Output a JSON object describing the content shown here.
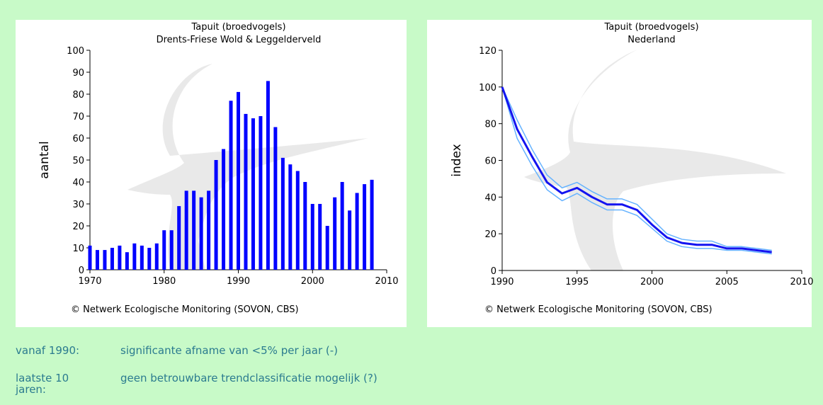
{
  "chart_data": [
    {
      "type": "bar",
      "title": "Tapuit (broedvogels)",
      "subtitle": "Drents-Friese Wold & Leggelderveld",
      "y_label": "aantal",
      "annotation": "© Netwerk Ecologische Monitoring (SOVON, CBS)",
      "x": [
        1970,
        1971,
        1972,
        1973,
        1974,
        1975,
        1976,
        1977,
        1978,
        1979,
        1980,
        1981,
        1982,
        1983,
        1984,
        1985,
        1986,
        1987,
        1988,
        1989,
        1990,
        1991,
        1992,
        1993,
        1994,
        1995,
        1996,
        1997,
        1998,
        1999,
        2000,
        2001,
        2002,
        2003,
        2004,
        2005,
        2006,
        2007,
        2008
      ],
      "values": [
        11,
        9,
        9,
        10,
        11,
        8,
        12,
        11,
        10,
        12,
        18,
        18,
        29,
        36,
        36,
        33,
        36,
        50,
        55,
        77,
        81,
        71,
        69,
        70,
        86,
        65,
        51,
        48,
        45,
        40,
        30,
        30,
        20,
        33,
        40,
        27,
        35,
        39,
        41
      ],
      "color": "#0000ff",
      "xlim": [
        1970,
        2010
      ],
      "xticks": [
        1970,
        1980,
        1990,
        2000,
        2010
      ],
      "ylim": [
        0,
        100
      ],
      "yticks": [
        0,
        10,
        20,
        30,
        40,
        50,
        60,
        70,
        80,
        90,
        100
      ]
    },
    {
      "type": "line",
      "title": "Tapuit (broedvogels)",
      "subtitle": "Nederland",
      "y_label": "index",
      "annotation": "© Netwerk Ecologische Monitoring (SOVON, CBS)",
      "x": [
        1990,
        1991,
        1992,
        1993,
        1994,
        1995,
        1996,
        1997,
        1998,
        1999,
        2000,
        2001,
        2002,
        2003,
        2004,
        2005,
        2006,
        2007,
        2008
      ],
      "series": [
        {
          "color": "#66b3ff",
          "values": [
            100,
            82,
            66,
            52,
            45,
            48,
            43,
            39,
            39,
            36,
            28,
            20,
            17,
            16,
            16,
            13,
            13,
            12,
            11
          ]
        },
        {
          "color": "#66b3ff",
          "values": [
            100,
            72,
            57,
            44,
            38,
            42,
            37,
            33,
            33,
            30,
            23,
            16,
            13,
            12,
            12,
            11,
            11,
            10,
            9
          ]
        },
        {
          "color": "#1414f0",
          "values": [
            100,
            77,
            62,
            48,
            42,
            45,
            40,
            36,
            36,
            33,
            25,
            18,
            15,
            14,
            14,
            12,
            12,
            11,
            10
          ]
        }
      ],
      "xlim": [
        1990,
        2010
      ],
      "xticks": [
        1990,
        1995,
        2000,
        2005,
        2010
      ],
      "ylim": [
        0,
        120
      ],
      "yticks": [
        0,
        20,
        40,
        60,
        80,
        100,
        120
      ]
    }
  ],
  "trend": [
    {
      "label": "vanaf 1990:",
      "text": "significante afname van <5% per jaar (-)"
    },
    {
      "label": "laatste 10 jaren:",
      "text": "geen betrouwbare trendclassificatie mogelijk (?)"
    }
  ]
}
